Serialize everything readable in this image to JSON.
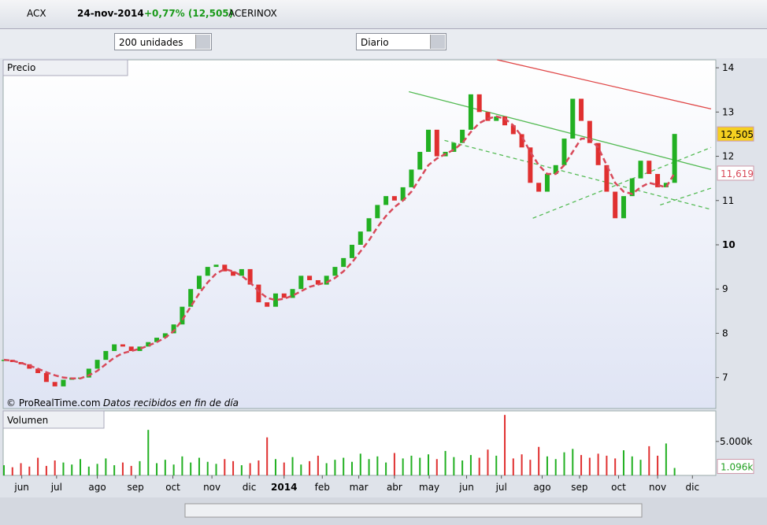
{
  "header": {
    "ticker": "ACX",
    "date": "24-nov-2014",
    "change": "+0,77% (12,505)",
    "name": "ACERINOX"
  },
  "toolbar": {
    "units": "200 unidades",
    "period": "Diario"
  },
  "price_panel": {
    "title": "Precio",
    "credit": "© ProRealTime.com",
    "note": "Datos recibidos en fin de día"
  },
  "volume_panel": {
    "title": "Volumen"
  },
  "chart_data": {
    "type": "candlestick",
    "xlim": [
      0,
      83.3
    ],
    "xticks": [
      {
        "value": 2.1,
        "label": "jun"
      },
      {
        "value": 6.2,
        "label": "jul"
      },
      {
        "value": 11.0,
        "label": "ago"
      },
      {
        "value": 15.5,
        "label": "sep"
      },
      {
        "value": 19.9,
        "label": "oct"
      },
      {
        "value": 24.5,
        "label": "nov"
      },
      {
        "value": 28.9,
        "label": "dic"
      },
      {
        "value": 33.0,
        "label": "2014"
      },
      {
        "value": 37.5,
        "label": "feb"
      },
      {
        "value": 41.8,
        "label": "mar"
      },
      {
        "value": 46.0,
        "label": "abr"
      },
      {
        "value": 50.1,
        "label": "may"
      },
      {
        "value": 54.5,
        "label": "jun"
      },
      {
        "value": 58.6,
        "label": "jul"
      },
      {
        "value": 63.4,
        "label": "ago"
      },
      {
        "value": 67.8,
        "label": "sep"
      },
      {
        "value": 72.4,
        "label": "oct"
      },
      {
        "value": 77.0,
        "label": "nov"
      },
      {
        "value": 81.1,
        "label": "dic"
      }
    ],
    "ylim": [
      6.3,
      14.18
    ],
    "yticks": [
      7,
      8,
      9,
      10,
      11,
      12,
      13,
      14
    ],
    "up_color": "#22b022",
    "down_color": "#e03030",
    "series": [
      {
        "name": "close",
        "values": [
          7.4,
          7.35,
          7.3,
          7.2,
          7.1,
          6.9,
          6.8,
          6.95,
          7.0,
          7.0,
          7.2,
          7.4,
          7.6,
          7.75,
          7.7,
          7.6,
          7.7,
          7.8,
          7.9,
          8.0,
          8.2,
          8.6,
          9.0,
          9.3,
          9.5,
          9.55,
          9.4,
          9.3,
          9.45,
          9.1,
          8.7,
          8.6,
          8.9,
          8.8,
          9.0,
          9.3,
          9.2,
          9.1,
          9.3,
          9.5,
          9.7,
          10.0,
          10.3,
          10.6,
          10.9,
          11.1,
          11.0,
          11.3,
          11.7,
          12.1,
          12.6,
          12.0,
          12.1,
          12.3,
          12.6,
          13.4,
          13.0,
          12.8,
          12.9,
          12.7,
          12.5,
          12.2,
          11.4,
          11.2,
          11.6,
          11.8,
          12.4,
          13.3,
          12.8,
          12.3,
          11.8,
          11.2,
          10.6,
          11.1,
          11.5,
          11.9,
          11.6,
          11.3,
          11.4,
          12.505
        ]
      },
      {
        "name": "ma",
        "color": "#d84a5a",
        "values": [
          7.4,
          7.38,
          7.33,
          7.27,
          7.2,
          7.12,
          7.05,
          7.0,
          6.98,
          6.98,
          7.05,
          7.15,
          7.3,
          7.45,
          7.55,
          7.6,
          7.65,
          7.72,
          7.8,
          7.9,
          8.05,
          8.3,
          8.6,
          8.9,
          9.15,
          9.35,
          9.45,
          9.4,
          9.3,
          9.15,
          8.95,
          8.8,
          8.75,
          8.78,
          8.85,
          8.95,
          9.05,
          9.1,
          9.15,
          9.25,
          9.4,
          9.6,
          9.85,
          10.1,
          10.4,
          10.65,
          10.85,
          11.0,
          11.2,
          11.5,
          11.8,
          11.95,
          12.05,
          12.15,
          12.3,
          12.55,
          12.75,
          12.85,
          12.9,
          12.85,
          12.7,
          12.45,
          12.1,
          11.8,
          11.6,
          11.6,
          11.8,
          12.1,
          12.4,
          12.4,
          12.2,
          11.8,
          11.4,
          11.2,
          11.15,
          11.3,
          11.4,
          11.35,
          11.3,
          11.619
        ]
      }
    ],
    "last_price": {
      "value": 12.505,
      "label": "12,505"
    },
    "ma_last": {
      "value": 11.619,
      "label": "11,619"
    },
    "trendlines": [
      {
        "color": "#e04848",
        "dashed": false,
        "x": [
          58.1,
          83.3
        ],
        "y": [
          14.18,
          13.07
        ]
      },
      {
        "color": "#55bb55",
        "dashed": false,
        "x": [
          47.7,
          83.3
        ],
        "y": [
          13.46,
          11.7
        ]
      },
      {
        "color": "#55bb55",
        "dashed": true,
        "x": [
          51.9,
          83.3
        ],
        "y": [
          12.36,
          10.8
        ]
      },
      {
        "color": "#55bb55",
        "dashed": true,
        "x": [
          62.3,
          83.3
        ],
        "y": [
          10.6,
          12.2
        ]
      },
      {
        "color": "#55bb55",
        "dashed": true,
        "x": [
          77.3,
          83.3
        ],
        "y": [
          10.9,
          11.28
        ]
      }
    ],
    "volume": {
      "ylim": [
        0,
        9500
      ],
      "yticks": [
        {
          "value": 5000,
          "label": "5.000k"
        }
      ],
      "values": [
        1500,
        1200,
        1800,
        1300,
        2600,
        1400,
        2200,
        1900,
        1600,
        2400,
        1300,
        1700,
        2500,
        1500,
        1900,
        1400,
        2100,
        6700,
        1800,
        2300,
        1600,
        2800,
        1900,
        2600,
        2000,
        1700,
        2400,
        2100,
        1500,
        1800,
        2200,
        5600,
        2400,
        1900,
        2700,
        1600,
        2100,
        2900,
        1800,
        2300,
        2600,
        2000,
        3200,
        2400,
        2800,
        1900,
        3300,
        2500,
        2900,
        2600,
        3100,
        2400,
        3600,
        2700,
        2200,
        3000,
        2600,
        3800,
        2900,
        8900,
        2500,
        3100,
        2300,
        4200,
        2800,
        2400,
        3400,
        3900,
        3000,
        2600,
        3200,
        2900,
        2500,
        3700,
        2800,
        2300,
        4300,
        2900,
        4700,
        1096
      ],
      "last": {
        "value": 1096,
        "label": "1.096k"
      }
    }
  }
}
